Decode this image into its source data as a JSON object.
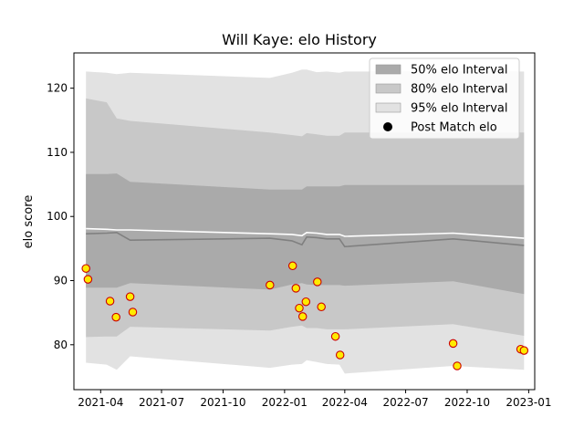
{
  "chart_data": {
    "type": "line",
    "title": "Will Kaye: elo History",
    "xlabel": "",
    "ylabel": "elo score",
    "xlim": [
      "2021-02-20",
      "2023-01-10"
    ],
    "ylim": [
      73,
      125.5
    ],
    "grid": false,
    "legend_placement": "upper right",
    "x_ticks": [
      "2021-04",
      "2021-07",
      "2021-10",
      "2022-01",
      "2022-04",
      "2022-07",
      "2022-10",
      "2023-01"
    ],
    "y_ticks": [
      "80",
      "90",
      "100",
      "110",
      "120"
    ],
    "colors": {
      "band_50": "#aaaaaa",
      "band_80": "#c8c8c8",
      "band_95": "#e2e2e2",
      "median_line": "#808080",
      "mean_line": "#ffffff",
      "point_fill": "#ffeb00",
      "point_edge": "#cc0000"
    },
    "band_dates": [
      "2021-03-10",
      "2021-04-10",
      "2021-04-25",
      "2021-05-15",
      "2021-12-10",
      "2022-01-12",
      "2022-01-27",
      "2022-02-03",
      "2022-02-18",
      "2022-03-05",
      "2022-03-24",
      "2022-04-01",
      "2022-09-10",
      "2022-12-25"
    ],
    "series": [
      {
        "name": "95% elo Interval",
        "lower": [
          77.2,
          76.9,
          76.1,
          78.2,
          76.4,
          76.9,
          77.0,
          77.6,
          77.3,
          77.0,
          76.9,
          75.5,
          76.7,
          76.1
        ],
        "upper": [
          122.6,
          122.4,
          122.2,
          122.4,
          121.6,
          122.4,
          122.9,
          122.9,
          122.5,
          122.6,
          122.4,
          122.6,
          122.6,
          122.6
        ]
      },
      {
        "name": "80% elo Interval",
        "lower": [
          81.2,
          81.3,
          81.3,
          82.8,
          82.2,
          82.8,
          83.0,
          82.6,
          82.6,
          82.4,
          82.4,
          82.4,
          83.2,
          81.4
        ],
        "upper": [
          118.4,
          117.8,
          115.3,
          114.9,
          113.1,
          112.7,
          112.5,
          113.0,
          112.8,
          112.6,
          112.6,
          113.1,
          113.1,
          113.1
        ]
      },
      {
        "name": "50% elo Interval",
        "lower": [
          88.9,
          88.9,
          88.9,
          89.6,
          88.6,
          89.4,
          89.6,
          89.4,
          89.3,
          89.3,
          89.3,
          89.2,
          89.9,
          87.9
        ],
        "upper": [
          106.6,
          106.6,
          106.7,
          105.4,
          104.2,
          104.2,
          104.2,
          104.7,
          104.7,
          104.7,
          104.7,
          104.9,
          104.9,
          104.9
        ]
      },
      {
        "name": "median",
        "values": [
          97.3,
          97.4,
          97.5,
          96.3,
          96.6,
          96.2,
          95.6,
          96.8,
          96.7,
          96.5,
          96.5,
          95.3,
          96.5,
          95.5
        ]
      },
      {
        "name": "mean",
        "values": [
          98.1,
          98.0,
          97.9,
          97.9,
          97.3,
          97.2,
          97.0,
          97.5,
          97.4,
          97.2,
          97.2,
          96.9,
          97.4,
          96.6
        ]
      },
      {
        "name": "Post Match elo",
        "points": [
          {
            "x": "2021-03-10",
            "y": 91.9
          },
          {
            "x": "2021-03-13",
            "y": 90.2
          },
          {
            "x": "2021-04-15",
            "y": 86.8
          },
          {
            "x": "2021-04-24",
            "y": 84.3
          },
          {
            "x": "2021-05-15",
            "y": 87.5
          },
          {
            "x": "2021-05-19",
            "y": 85.1
          },
          {
            "x": "2021-12-10",
            "y": 89.3
          },
          {
            "x": "2022-01-13",
            "y": 92.3
          },
          {
            "x": "2022-01-18",
            "y": 88.8
          },
          {
            "x": "2022-01-23",
            "y": 85.7
          },
          {
            "x": "2022-01-28",
            "y": 84.4
          },
          {
            "x": "2022-02-02",
            "y": 86.7
          },
          {
            "x": "2022-02-19",
            "y": 89.8
          },
          {
            "x": "2022-02-25",
            "y": 85.9
          },
          {
            "x": "2022-03-18",
            "y": 81.3
          },
          {
            "x": "2022-03-25",
            "y": 78.4
          },
          {
            "x": "2022-09-10",
            "y": 80.2
          },
          {
            "x": "2022-09-16",
            "y": 76.7
          },
          {
            "x": "2022-12-20",
            "y": 79.3
          },
          {
            "x": "2022-12-25",
            "y": 79.1
          }
        ]
      }
    ],
    "legend": [
      {
        "label": "50% elo Interval",
        "kind": "band",
        "color": "#aaaaaa"
      },
      {
        "label": "80% elo Interval",
        "kind": "band",
        "color": "#c8c8c8"
      },
      {
        "label": "95% elo Interval",
        "kind": "band",
        "color": "#e2e2e2"
      },
      {
        "label": "Post Match elo",
        "kind": "marker",
        "color": "#000000"
      }
    ]
  }
}
